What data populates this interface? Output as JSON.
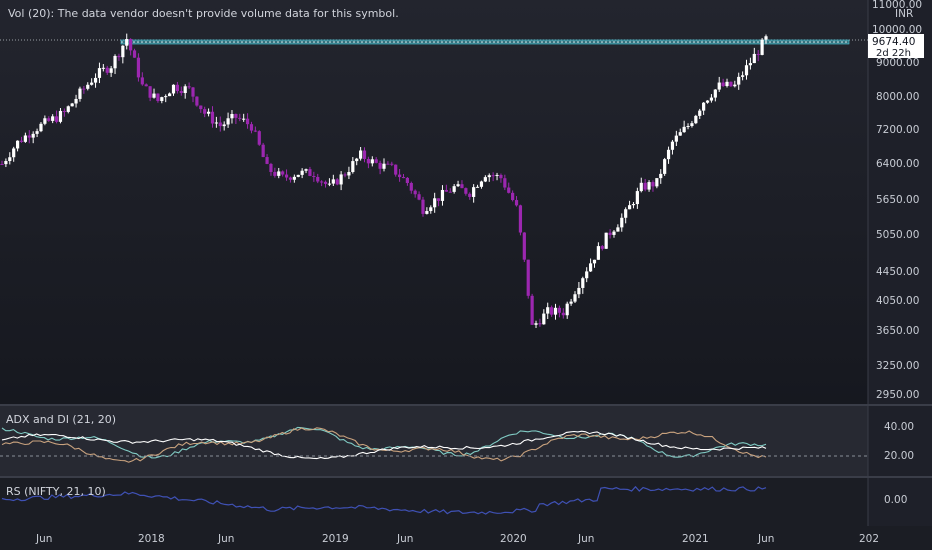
{
  "main_pane": {
    "volume_notice": "Vol (20): The data vendor doesn't provide volume data for this symbol.",
    "currency": "INR",
    "price_ticks": [
      "11000.00",
      "10000.00",
      "9000.00",
      "8000.00",
      "7200.00",
      "6400.00",
      "5650.00",
      "5050.00",
      "4450.00",
      "4050.00",
      "3650.00",
      "3250.00",
      "2950.00"
    ],
    "last_price": "9674.40",
    "countdown": "2d 22h",
    "candle_up_color": "#ffffff",
    "candle_down_color": "#9c27b0",
    "line_color": "#4dd0e1"
  },
  "adx_pane": {
    "label": "ADX and DI (21, 20)",
    "ticks": [
      "40.00",
      "20.00"
    ],
    "adx_color": "#ffffff",
    "di_plus_color": "#80cbc4",
    "di_minus_color": "#c9a27e"
  },
  "rs_pane": {
    "label": "RS (NIFTY, 21, 10)",
    "ticks": [
      "0.00"
    ],
    "line_color": "#3f51b5"
  },
  "time_axis": {
    "labels": [
      "Jun",
      "2018",
      "Jun",
      "2019",
      "Jun",
      "2020",
      "Jun",
      "2021",
      "Jun",
      "202"
    ]
  },
  "chart_data": {
    "type": "candlestick",
    "series": [
      {
        "x": "2017-05",
        "close": 6400
      },
      {
        "x": "2017-06",
        "close": 6900
      },
      {
        "x": "2017-07",
        "close": 7200
      },
      {
        "x": "2017-08",
        "close": 7400
      },
      {
        "x": "2017-09",
        "close": 7600
      },
      {
        "x": "2017-10",
        "close": 8100
      },
      {
        "x": "2017-11",
        "close": 8600
      },
      {
        "x": "2017-12",
        "close": 8900
      },
      {
        "x": "2018-01",
        "close": 9700
      },
      {
        "x": "2018-02",
        "close": 8300
      },
      {
        "x": "2018-03",
        "close": 7900
      },
      {
        "x": "2018-04",
        "close": 8300
      },
      {
        "x": "2018-05",
        "close": 8200
      },
      {
        "x": "2018-06",
        "close": 7600
      },
      {
        "x": "2018-07",
        "close": 7300
      },
      {
        "x": "2018-08",
        "close": 7500
      },
      {
        "x": "2018-09",
        "close": 7300
      },
      {
        "x": "2018-10",
        "close": 6300
      },
      {
        "x": "2018-11",
        "close": 6100
      },
      {
        "x": "2018-12",
        "close": 6200
      },
      {
        "x": "2019-01",
        "close": 6200
      },
      {
        "x": "2019-02",
        "close": 5900
      },
      {
        "x": "2019-03",
        "close": 6200
      },
      {
        "x": "2019-04",
        "close": 6600
      },
      {
        "x": "2019-05",
        "close": 6400
      },
      {
        "x": "2019-06",
        "close": 6300
      },
      {
        "x": "2019-07",
        "close": 6000
      },
      {
        "x": "2019-08",
        "close": 5500
      },
      {
        "x": "2019-09",
        "close": 5700
      },
      {
        "x": "2019-10",
        "close": 5900
      },
      {
        "x": "2019-11",
        "close": 5800
      },
      {
        "x": "2019-12",
        "close": 6200
      },
      {
        "x": "2020-01",
        "close": 6100
      },
      {
        "x": "2020-02",
        "close": 5500
      },
      {
        "x": "2020-03",
        "close": 3700
      },
      {
        "x": "2020-04",
        "close": 3900
      },
      {
        "x": "2020-05",
        "close": 3900
      },
      {
        "x": "2020-06",
        "close": 4300
      },
      {
        "x": "2020-07",
        "close": 4700
      },
      {
        "x": "2020-08",
        "close": 5100
      },
      {
        "x": "2020-09",
        "close": 5400
      },
      {
        "x": "2020-10",
        "close": 5900
      },
      {
        "x": "2020-11",
        "close": 6000
      },
      {
        "x": "2020-12",
        "close": 6900
      },
      {
        "x": "2021-01",
        "close": 7300
      },
      {
        "x": "2021-02",
        "close": 7900
      },
      {
        "x": "2021-03",
        "close": 8300
      },
      {
        "x": "2021-04",
        "close": 8300
      },
      {
        "x": "2021-05",
        "close": 9000
      },
      {
        "x": "2021-06",
        "close": 9674.4
      }
    ]
  }
}
